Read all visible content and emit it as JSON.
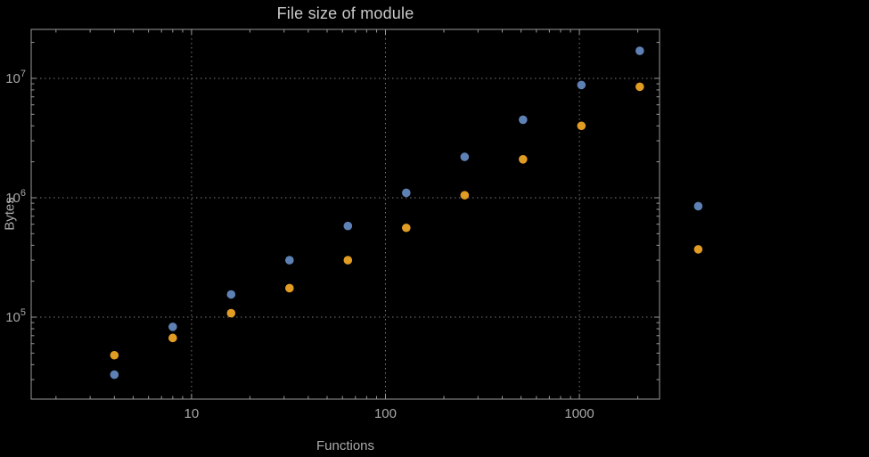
{
  "title": "File size of module",
  "axes": {
    "x_label": "Functions",
    "y_label": "Bytes"
  },
  "chart_data": {
    "type": "scatter",
    "title": "File size of module",
    "xlabel": "Functions",
    "ylabel": "Bytes",
    "x_scale": "log",
    "y_scale": "log",
    "xlim": [
      1.49,
      2590
    ],
    "ylim": [
      20600,
      25700000
    ],
    "grid": "dotted",
    "legend": "none",
    "x": [
      4,
      8,
      16,
      32,
      64,
      128,
      256,
      512,
      1024,
      2048,
      4100
    ],
    "series": [
      {
        "name": "series-blue",
        "color": "#5e81b5",
        "values": [
          33000,
          83000,
          155000,
          300000,
          580000,
          1100000,
          2200000,
          4500000,
          8800000,
          17000000,
          850000
        ]
      },
      {
        "name": "series-orange",
        "color": "#e19c24",
        "values": [
          48000,
          67000,
          108000,
          175000,
          300000,
          560000,
          1050000,
          2100000,
          4000000,
          8500000,
          370000
        ]
      }
    ],
    "x_ticks": {
      "values": [
        10,
        100,
        1000
      ],
      "labels": [
        "10",
        "100",
        "1000"
      ]
    },
    "y_ticks": {
      "values": [
        100000,
        1000000,
        10000000
      ],
      "base": "10",
      "exponents": [
        "5",
        "6",
        "7"
      ]
    },
    "colors": {
      "background": "#000000",
      "frame": "#9a9a9a",
      "grid": "#7a7a7a",
      "tick_label": "#a8a8a8",
      "title": "#c9c9c9",
      "axis_label": "#ababab"
    }
  }
}
